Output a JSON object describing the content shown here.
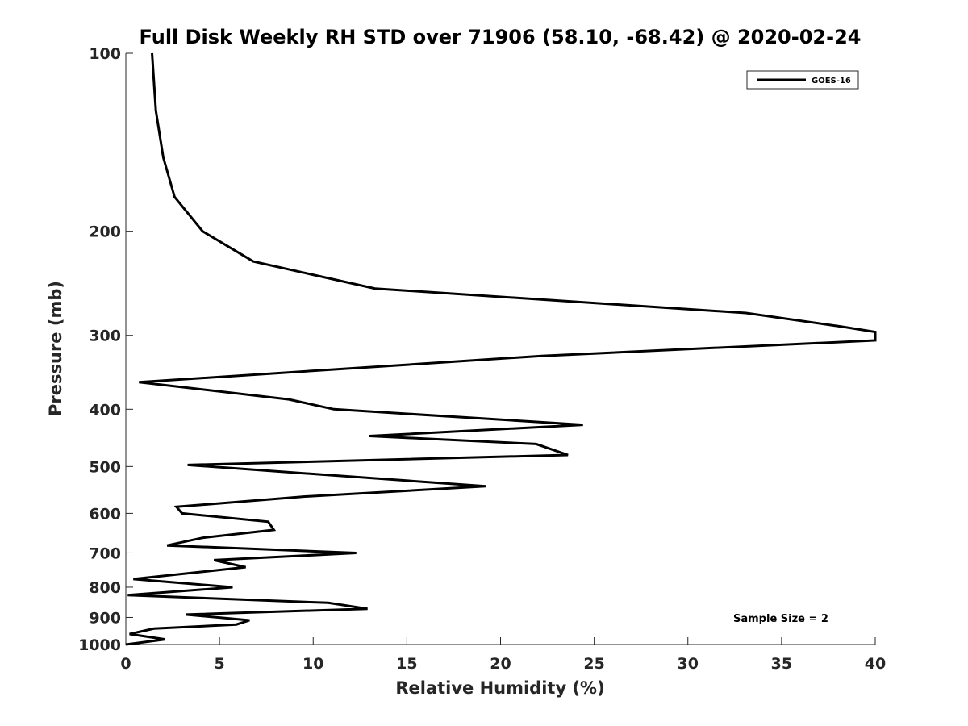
{
  "chart_data": {
    "type": "line",
    "title": "Full Disk Weekly RH STD over 71906 (58.10, -68.42) @ 2020-02-24",
    "xlabel": "Relative Humidity (%)",
    "ylabel": "Pressure (mb)",
    "xlim": [
      0,
      40
    ],
    "ylim": [
      100,
      1000
    ],
    "y_scale": "log",
    "y_reversed": true,
    "x_ticks": [
      0,
      5,
      10,
      15,
      20,
      25,
      30,
      35,
      40
    ],
    "y_ticks": [
      100,
      200,
      300,
      400,
      500,
      600,
      700,
      800,
      900,
      1000
    ],
    "grid": false,
    "legend_position": "top-right",
    "annotation": "Sample Size = 2",
    "series": [
      {
        "name": "GOES-16",
        "color": "#000000",
        "points": [
          [
            1.4,
            100
          ],
          [
            1.6,
            125
          ],
          [
            2.0,
            150
          ],
          [
            2.6,
            175
          ],
          [
            4.1,
            200
          ],
          [
            6.8,
            225
          ],
          [
            13.3,
            250
          ],
          [
            33.1,
            275
          ],
          [
            38.2,
            290
          ],
          [
            40.0,
            296
          ],
          [
            40.0,
            306
          ],
          [
            22.2,
            325
          ],
          [
            0.7,
            360
          ],
          [
            8.7,
            385
          ],
          [
            11.1,
            400
          ],
          [
            24.4,
            425
          ],
          [
            13.0,
            444
          ],
          [
            21.9,
            458
          ],
          [
            23.6,
            478
          ],
          [
            3.3,
            497
          ],
          [
            19.2,
            540
          ],
          [
            9.5,
            562
          ],
          [
            2.7,
            585
          ],
          [
            3.0,
            600
          ],
          [
            7.6,
            620
          ],
          [
            7.9,
            640
          ],
          [
            4.1,
            660
          ],
          [
            2.2,
            680
          ],
          [
            12.3,
            700
          ],
          [
            4.7,
            720
          ],
          [
            6.4,
            740
          ],
          [
            0.4,
            775
          ],
          [
            5.7,
            800
          ],
          [
            0.1,
            825
          ],
          [
            10.8,
            850
          ],
          [
            12.9,
            870
          ],
          [
            3.2,
            890
          ],
          [
            6.6,
            910
          ],
          [
            5.9,
            925
          ],
          [
            1.5,
            940
          ],
          [
            0.2,
            960
          ],
          [
            2.1,
            980
          ],
          [
            0.0,
            1000
          ]
        ]
      }
    ]
  }
}
